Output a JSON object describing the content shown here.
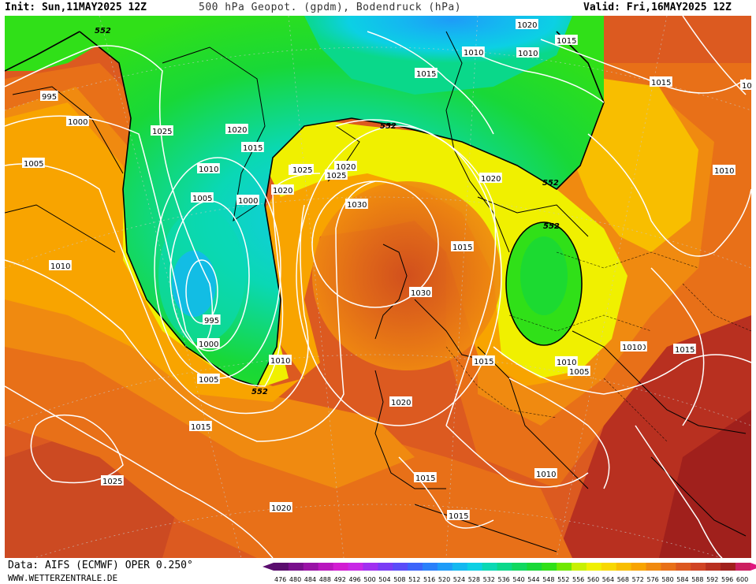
{
  "header": {
    "init": "Init: Sun,11MAY2025 12Z",
    "title": "500 hPa Geopot. (gpdm), Bodendruck (hPa)",
    "valid": "Valid: Fri,16MAY2025 12Z"
  },
  "footer": {
    "data_source": "Data: AIFS (ECMWF) OPER 0.250°",
    "website": "WWW.WETTERZENTRALE.DE"
  },
  "legend": {
    "values": [
      "476",
      "480",
      "484",
      "488",
      "492",
      "496",
      "500",
      "504",
      "508",
      "512",
      "516",
      "520",
      "524",
      "528",
      "532",
      "536",
      "540",
      "544",
      "548",
      "552",
      "556",
      "560",
      "564",
      "568",
      "572",
      "576",
      "580",
      "584",
      "588",
      "592",
      "596",
      "600"
    ],
    "colors": [
      "#5a0d6e",
      "#780f8c",
      "#9912a6",
      "#b816be",
      "#d21cd2",
      "#c828e6",
      "#a030f0",
      "#7a3cf5",
      "#5a4cf8",
      "#3c64fa",
      "#2a80fa",
      "#1e9cf8",
      "#14b8f0",
      "#0cd0e4",
      "#0ad8b4",
      "#0ad88a",
      "#10d860",
      "#18d838",
      "#30e018",
      "#70e800",
      "#c8f000",
      "#f0f000",
      "#f8d800",
      "#f8be00",
      "#f8a400",
      "#f08a10",
      "#e87018",
      "#dc5820",
      "#d04424",
      "#b83020",
      "#a0201c",
      "#cc2060"
    ],
    "arrow_left_color": "#5a0d6e",
    "arrow_right_color": "#e0167e"
  },
  "map": {
    "background_color": "#dc5a20",
    "contour_label_552": "552",
    "pressure_labels": [
      {
        "text": "552"
      },
      {
        "text": "995"
      },
      {
        "text": "1000"
      },
      {
        "text": "1005"
      },
      {
        "text": "1025"
      },
      {
        "text": "1020"
      },
      {
        "text": "1015"
      },
      {
        "text": "1010"
      },
      {
        "text": "1005"
      },
      {
        "text": "1000"
      },
      {
        "text": "1010"
      },
      {
        "text": "1020"
      },
      {
        "text": "1025"
      },
      {
        "text": "1025"
      },
      {
        "text": "1020"
      },
      {
        "text": "1030"
      },
      {
        "text": "1020"
      },
      {
        "text": "1015"
      },
      {
        "text": "1010"
      },
      {
        "text": "1010"
      },
      {
        "text": "1015"
      },
      {
        "text": "1020"
      },
      {
        "text": "1015"
      },
      {
        "text": "1015"
      },
      {
        "text": "1010"
      },
      {
        "text": "1025"
      },
      {
        "text": "1030"
      },
      {
        "text": "995"
      },
      {
        "text": "1000"
      },
      {
        "text": "1005"
      },
      {
        "text": "1010"
      },
      {
        "text": "552"
      },
      {
        "text": "1015"
      },
      {
        "text": "1020"
      },
      {
        "text": "1025"
      },
      {
        "text": "1015"
      },
      {
        "text": "1015"
      },
      {
        "text": "1020"
      },
      {
        "text": "1010"
      },
      {
        "text": "1015"
      },
      {
        "text": "1010"
      },
      {
        "text": "1010"
      },
      {
        "text": "1005"
      },
      {
        "text": "1015"
      },
      {
        "text": "1010"
      },
      {
        "text": "1015"
      },
      {
        "text": "552"
      },
      {
        "text": "552"
      },
      {
        "text": "552"
      },
      {
        "text": "1010"
      },
      {
        "text": "1025"
      },
      {
        "text": "1010"
      },
      {
        "text": "10"
      }
    ]
  }
}
